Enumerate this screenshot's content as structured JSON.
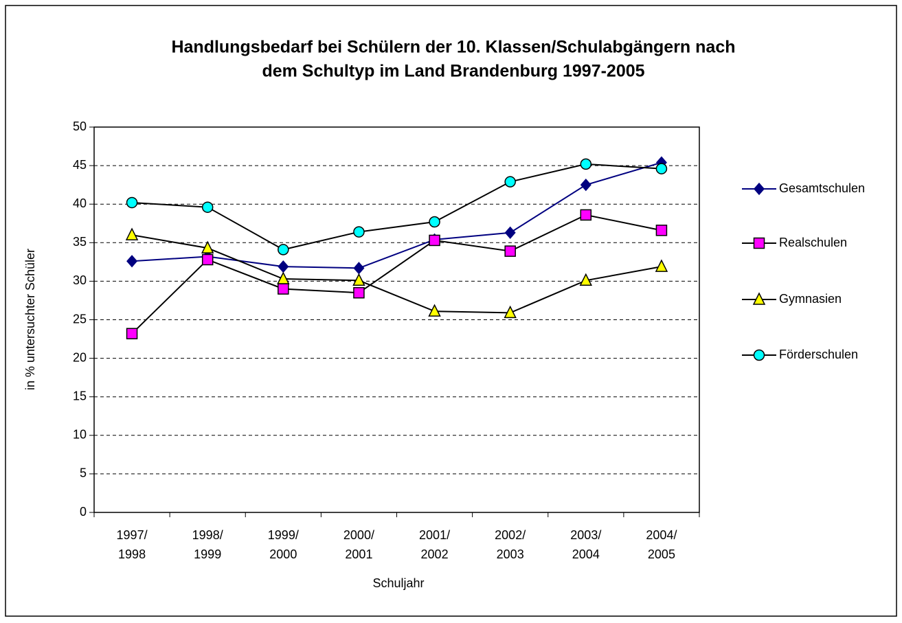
{
  "chart_data": {
    "type": "line",
    "title": [
      "Handlungsbedarf bei Schülern der 10. Klassen/Schulabgängern nach",
      "dem Schultyp im Land Brandenburg 1997-2005"
    ],
    "x_label": "Schuljahr",
    "y_label": "in % untersuchter Schüler",
    "categories": [
      [
        "1997/",
        "1998"
      ],
      [
        "1998/",
        "1999"
      ],
      [
        "1999/",
        "2000"
      ],
      [
        "2000/",
        "2001"
      ],
      [
        "2001/",
        "2002"
      ],
      [
        "2002/",
        "2003"
      ],
      [
        "2003/",
        "2004"
      ],
      [
        "2004/",
        "2005"
      ]
    ],
    "series": [
      {
        "name": "Gesamtschulen",
        "color": "#000080",
        "marker": "diamond",
        "marker_color": "#000080",
        "values": [
          32.6,
          33.2,
          31.9,
          31.7,
          35.4,
          36.3,
          42.5,
          45.4
        ]
      },
      {
        "name": "Realschulen",
        "color": "#000000",
        "marker": "square",
        "marker_color": "#ff00ff",
        "values": [
          23.2,
          32.8,
          29.0,
          28.5,
          35.3,
          33.9,
          38.6,
          36.6
        ]
      },
      {
        "name": "Gymnasien",
        "color": "#000000",
        "marker": "triangle",
        "marker_color": "#ffff00",
        "values": [
          36.0,
          34.3,
          30.3,
          30.1,
          26.1,
          25.9,
          30.1,
          31.9
        ]
      },
      {
        "name": "Förderschulen",
        "color": "#000000",
        "marker": "circle",
        "marker_color": "#00ffff",
        "values": [
          40.2,
          39.6,
          34.1,
          36.4,
          37.7,
          42.9,
          45.2,
          44.6
        ]
      }
    ],
    "ylim": [
      0,
      50
    ],
    "yticks": [
      0,
      5,
      10,
      15,
      20,
      25,
      30,
      35,
      40,
      45,
      50
    ],
    "grid": true,
    "legend": "right"
  }
}
